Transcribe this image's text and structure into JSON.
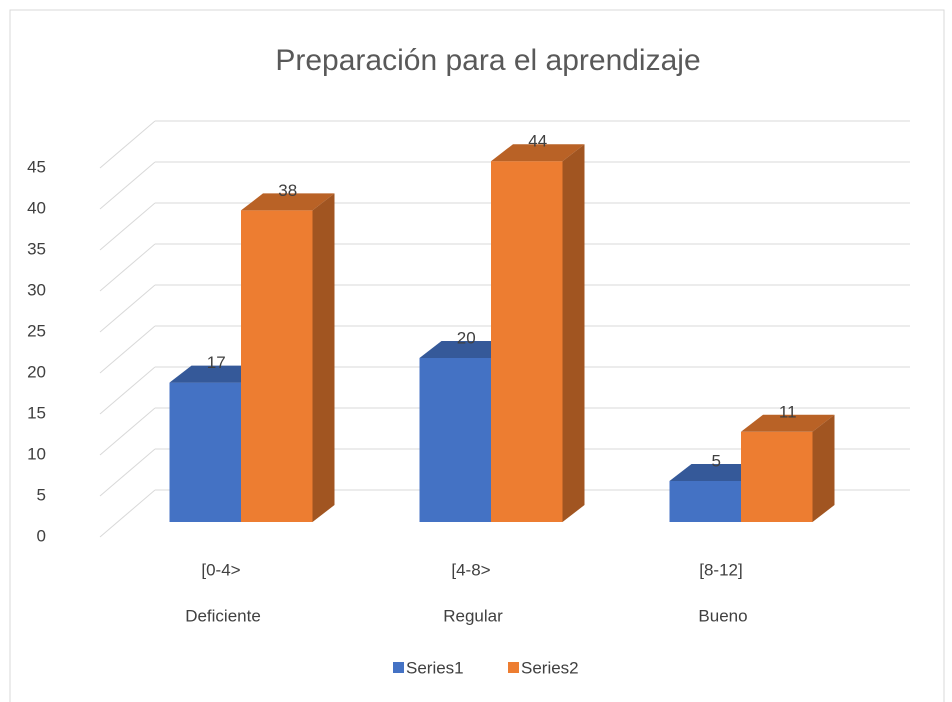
{
  "chart_data": {
    "type": "bar3d",
    "title": "Preparación para el aprendizaje",
    "categories": [
      "[0-4>",
      "[4-8>",
      "[8-12]"
    ],
    "category_groups": [
      "Deficiente",
      "Regular",
      "Bueno"
    ],
    "series": [
      {
        "name": "Series1",
        "color": "#4472c4",
        "values": [
          17,
          20,
          5
        ]
      },
      {
        "name": "Series2",
        "color": "#ed7d31",
        "values": [
          38,
          44,
          11
        ]
      }
    ],
    "ylim": [
      0,
      45
    ],
    "yticks": [
      0,
      5,
      10,
      15,
      20,
      25,
      30,
      35,
      40,
      45
    ],
    "grid": true,
    "legend": "bottom"
  }
}
